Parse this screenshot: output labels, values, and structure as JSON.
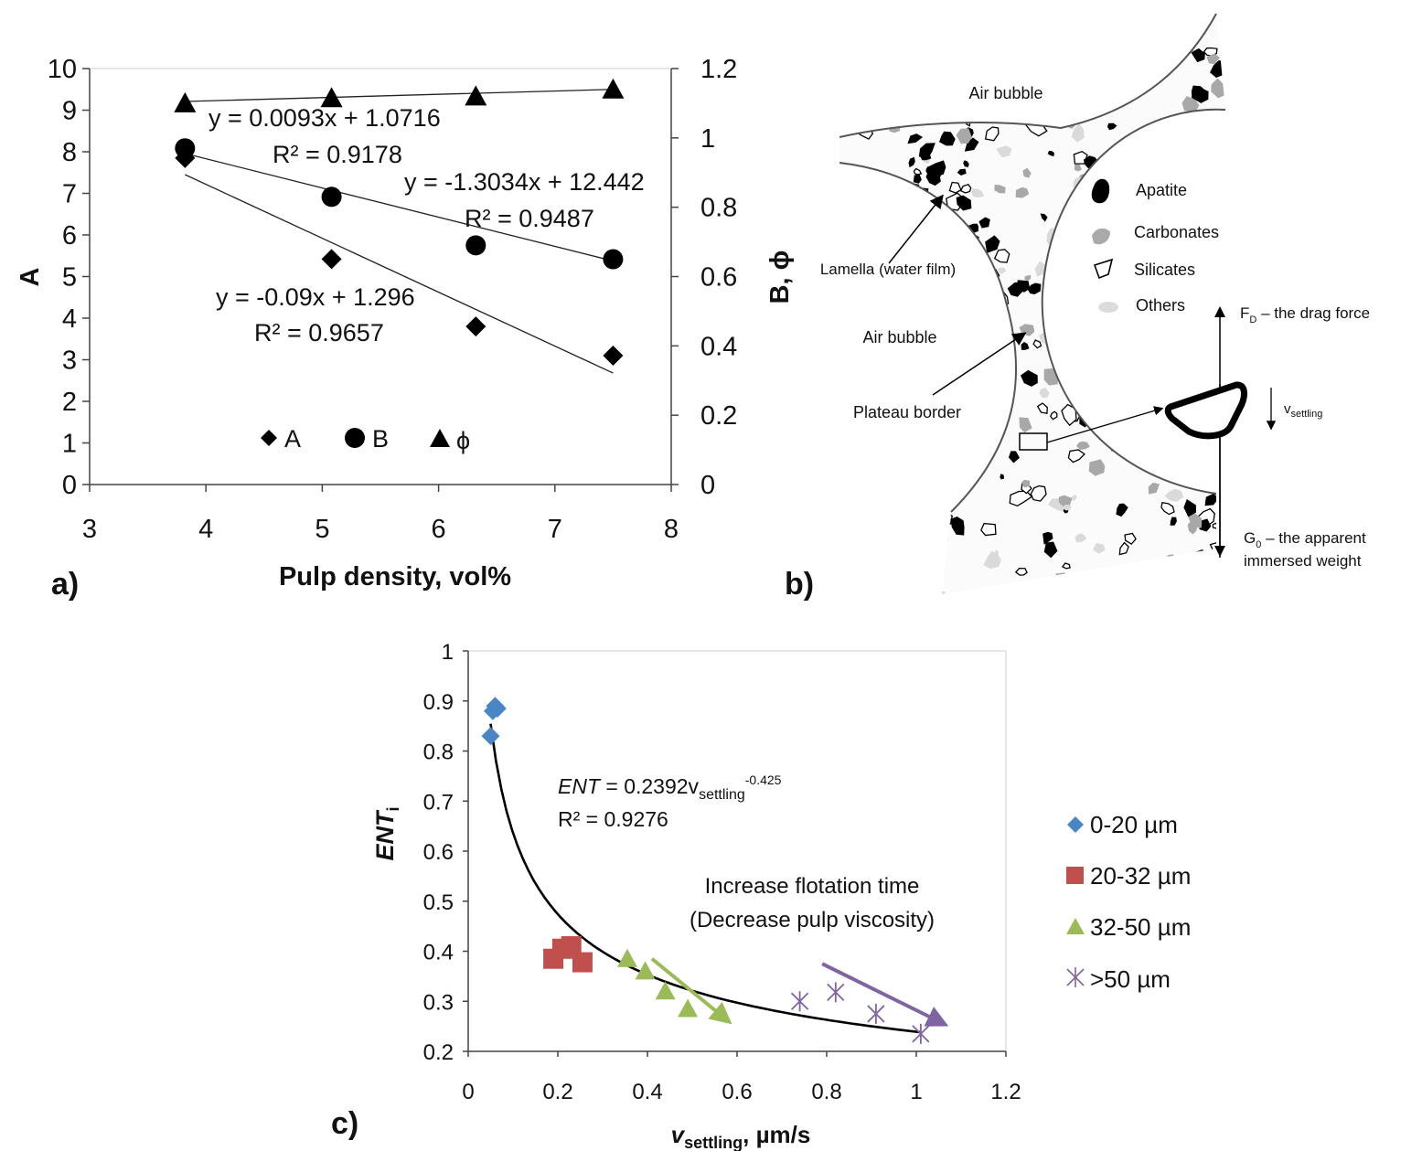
{
  "colors": {
    "black": "#000000",
    "blue": "#4a86c6",
    "red": "#c0504d",
    "green": "#9bbb59",
    "purple": "#8064a2",
    "gray": "#aaaaaa"
  },
  "panel_labels": {
    "a": "a)",
    "b": "b)",
    "c": "c)"
  },
  "diagram": {
    "air_bubble_top": "Air bubble",
    "air_bubble_left": "Air bubble",
    "lamella": "Lamella (water film)",
    "plateau_border": "Plateau border",
    "legend": [
      {
        "label": "Apatite",
        "icon": "apatite-particle-icon"
      },
      {
        "label": "Carbonates",
        "icon": "carbonate-particle-icon"
      },
      {
        "label": "Silicates",
        "icon": "silicate-particle-icon"
      },
      {
        "label": "Others",
        "icon": "other-particle-icon"
      }
    ],
    "fd_prefix": "F",
    "fd_sub": "D",
    "fd_text": " – the drag force",
    "g0_prefix": "G",
    "g0_sub": "0",
    "g0_text": " – the apparent",
    "g0_line2": "immersed weight",
    "v_main": "v",
    "v_sub": "settling"
  },
  "chart_data": [
    {
      "type": "scatter",
      "xlabel": "Pulp density, vol%",
      "ylabel": "A",
      "y2label": "B, ϕ",
      "xlim": [
        3,
        8
      ],
      "ylim": [
        0,
        10
      ],
      "y2lim": [
        0,
        1.2
      ],
      "xticks": [
        "3",
        "4",
        "5",
        "6",
        "7",
        "8"
      ],
      "yticks": [
        "0",
        "1",
        "2",
        "3",
        "4",
        "5",
        "6",
        "7",
        "8",
        "9",
        "10"
      ],
      "y2ticks": [
        "0",
        "0.2",
        "0.4",
        "0.6",
        "0.8",
        "1",
        "1.2"
      ],
      "grid": false,
      "legend_position": "bottom-center",
      "series": [
        {
          "name": "A",
          "axis": "left",
          "marker": "diamond",
          "x": [
            3.82,
            5.08,
            6.32,
            7.5
          ],
          "y": [
            7.85,
            5.42,
            3.8,
            3.1
          ],
          "trendline": {
            "label": "y = -0.09x + 1.296",
            "r2": "R² = 0.9657",
            "x": [
              3.82,
              7.5
            ],
            "y": [
              7.45,
              2.68
            ]
          }
        },
        {
          "name": "B",
          "axis": "right",
          "marker": "circle",
          "x": [
            3.82,
            5.08,
            6.32,
            7.5
          ],
          "y": [
            0.97,
            0.83,
            0.69,
            0.65
          ],
          "trendline": {
            "label": "y = -1.3034x + 12.442",
            "r2": "R² = 0.9487",
            "x": [
              3.82,
              7.5
            ],
            "y": [
              0.955,
              0.645
            ]
          }
        },
        {
          "name": "ϕ",
          "axis": "right",
          "marker": "triangle",
          "x": [
            3.82,
            5.08,
            6.32,
            7.5
          ],
          "y": [
            1.1,
            1.115,
            1.12,
            1.14
          ],
          "trendline": {
            "label": "y = 0.0093x + 1.0716",
            "r2": "R² = 0.9178",
            "x": [
              3.82,
              7.5
            ],
            "y": [
              1.105,
              1.14
            ]
          }
        }
      ]
    },
    {
      "type": "scatter",
      "xlabel_main": "v",
      "xlabel_sub": "settling",
      "xlabel_unit": ", µm/s",
      "ylabel_main": "ENT",
      "ylabel_sub": "i",
      "xlim": [
        0,
        1.2
      ],
      "ylim": [
        0.2,
        1
      ],
      "xticks": [
        "0",
        "0.2",
        "0.4",
        "0.6",
        "0.8",
        "1",
        "1.2"
      ],
      "yticks": [
        "0.2",
        "0.3",
        "0.4",
        "0.5",
        "0.6",
        "0.7",
        "0.8",
        "0.9",
        "1"
      ],
      "grid": false,
      "legend_position": "right",
      "series": [
        {
          "name": "0-20 µm",
          "marker": "diamond",
          "color": "#4a86c6",
          "x": [
            0.05,
            0.055,
            0.065,
            0.06
          ],
          "y": [
            0.83,
            0.88,
            0.885,
            0.89
          ]
        },
        {
          "name": "20-32 µm",
          "marker": "square",
          "color": "#c0504d",
          "x": [
            0.19,
            0.21,
            0.23,
            0.255
          ],
          "y": [
            0.385,
            0.405,
            0.41,
            0.378
          ]
        },
        {
          "name": "32-50 µm",
          "marker": "triangle",
          "color": "#9bbb59",
          "x": [
            0.355,
            0.395,
            0.44,
            0.49
          ],
          "y": [
            0.385,
            0.36,
            0.32,
            0.285
          ]
        },
        {
          "name": ">50 µm",
          "marker": "asterisk",
          "color": "#8064a2",
          "x": [
            0.74,
            0.82,
            0.91,
            1.01
          ],
          "y": [
            0.3,
            0.318,
            0.275,
            0.235
          ]
        }
      ],
      "fit": {
        "a": 0.2392,
        "b": -0.425,
        "x_range": [
          0.05,
          1.01
        ],
        "eq_main": "ENT",
        "eq_mid": " = 0.2392v",
        "eq_sub": "settling",
        "eq_sup": "-0.425",
        "r2": "R² = 0.9276"
      },
      "annotation": {
        "line1": "Increase flotation time",
        "line2": "(Decrease pulp viscosity)"
      },
      "arrows": [
        {
          "color": "#9bbb59",
          "from": [
            0.41,
            0.385
          ],
          "to": [
            0.57,
            0.268
          ]
        },
        {
          "color": "#8064a2",
          "from": [
            0.79,
            0.375
          ],
          "to": [
            1.05,
            0.26
          ]
        }
      ]
    }
  ]
}
